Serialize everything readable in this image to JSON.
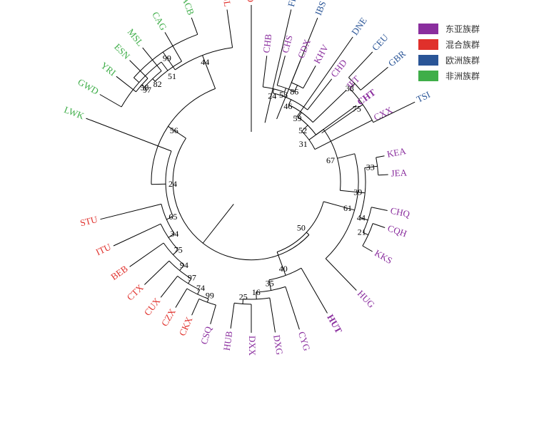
{
  "legend": [
    {
      "label": "东亚族群",
      "color": "#8a2e9e"
    },
    {
      "label": "混合族群",
      "color": "#e0302b"
    },
    {
      "label": "欧洲族群",
      "color": "#2a5597"
    },
    {
      "label": "非洲族群",
      "color": "#3fae49"
    }
  ],
  "leaves": [
    {
      "label": "CHB",
      "group": 0
    },
    {
      "label": "CHS",
      "group": 0
    },
    {
      "label": "CDX",
      "group": 0
    },
    {
      "label": "KHV",
      "group": 0
    },
    {
      "label": "CHD",
      "group": 0
    },
    {
      "label": "JPT",
      "group": 0
    },
    {
      "label": "CHT",
      "group": 0,
      "bold": true
    },
    {
      "label": "CXX",
      "group": 0
    },
    {
      "label": "KEA",
      "group": 0
    },
    {
      "label": "JEA",
      "group": 0
    },
    {
      "label": "CHQ",
      "group": 0
    },
    {
      "label": "CQH",
      "group": 0
    },
    {
      "label": "KKS",
      "group": 0
    },
    {
      "label": "HUG",
      "group": 0
    },
    {
      "label": "HUT",
      "group": 0,
      "bold": true
    },
    {
      "label": "CYG",
      "group": 0
    },
    {
      "label": "DXG",
      "group": 0
    },
    {
      "label": "DXX",
      "group": 0
    },
    {
      "label": "HUB",
      "group": 0
    },
    {
      "label": "CSQ",
      "group": 0
    },
    {
      "label": "CKX",
      "group": 1
    },
    {
      "label": "CZX",
      "group": 1
    },
    {
      "label": "CUX",
      "group": 1
    },
    {
      "label": "CTX",
      "group": 1
    },
    {
      "label": "BEB",
      "group": 1
    },
    {
      "label": "ITU",
      "group": 1
    },
    {
      "label": "STU",
      "group": 1
    },
    {
      "label": "LWK",
      "group": 3
    },
    {
      "label": "GWD",
      "group": 3
    },
    {
      "label": "YRI",
      "group": 3
    },
    {
      "label": "ESN",
      "group": 3
    },
    {
      "label": "MSL",
      "group": 3
    },
    {
      "label": "CAG",
      "group": 3
    },
    {
      "label": "ACB",
      "group": 3
    },
    {
      "label": "PJL",
      "group": 1
    },
    {
      "label": "GIH",
      "group": 1
    },
    {
      "label": "FIN",
      "group": 2
    },
    {
      "label": "IBS",
      "group": 2
    },
    {
      "label": "DNE",
      "group": 2
    },
    {
      "label": "CEU",
      "group": 2
    },
    {
      "label": "GBR",
      "group": 2
    },
    {
      "label": "TSI",
      "group": 2
    }
  ],
  "bootstrap": [
    "24",
    "58",
    "86",
    "46",
    "59",
    "52",
    "31",
    "67",
    "33",
    "39",
    "44",
    "21",
    "50",
    "61",
    "40",
    "35",
    "16",
    "25",
    "99",
    "74",
    "97",
    "94",
    "75",
    "34",
    "65",
    "24",
    "56",
    "100",
    "51",
    "82",
    "97",
    "58",
    "99",
    "44",
    "95",
    "68",
    "65",
    "52",
    "38",
    "75"
  ]
}
